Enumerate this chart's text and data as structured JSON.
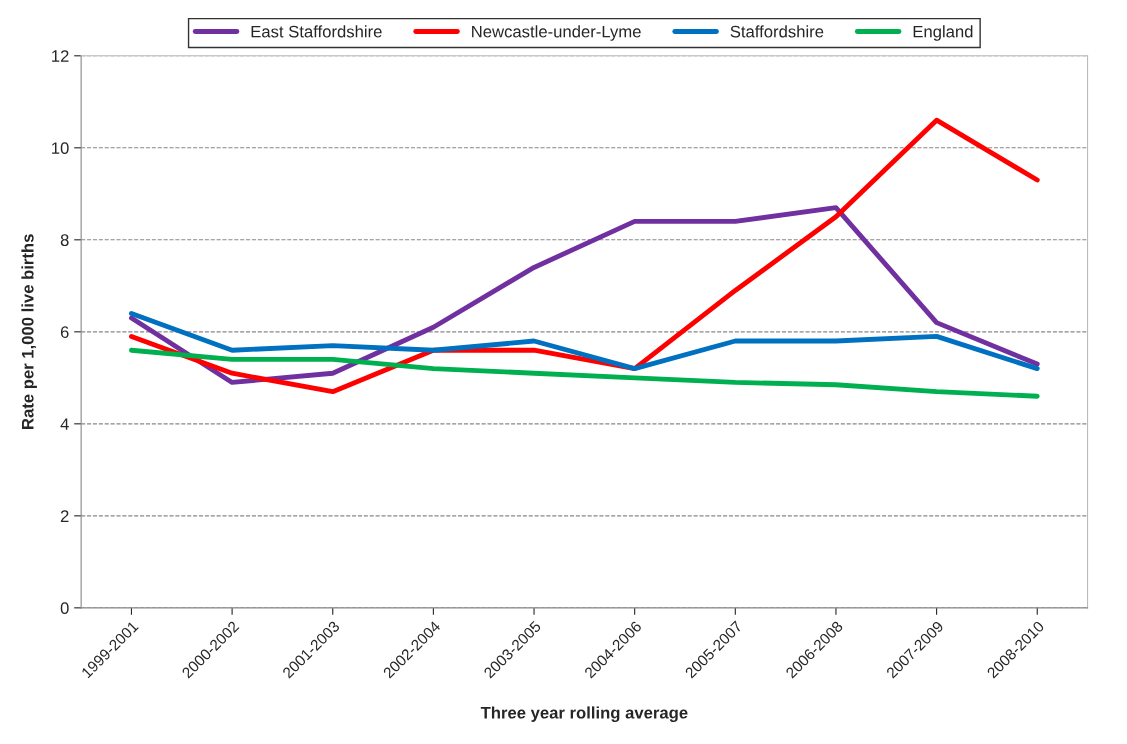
{
  "chart_data": {
    "type": "line",
    "xlabel": "Three year rolling average",
    "ylabel": "Rate per 1,000 live births",
    "categories": [
      "1999-2001",
      "2000-2002",
      "2001-2003",
      "2002-2004",
      "2003-2005",
      "2004-2006",
      "2005-2007",
      "2006-2008",
      "2007-2009",
      "2008-2010"
    ],
    "series": [
      {
        "name": "East Staffordshire",
        "color": "#7030a0",
        "values": [
          6.3,
          4.9,
          5.1,
          6.1,
          7.4,
          8.4,
          8.4,
          8.7,
          6.2,
          5.3
        ]
      },
      {
        "name": "Newcastle-under-Lyme",
        "color": "#ff0000",
        "values": [
          5.9,
          5.1,
          4.7,
          5.6,
          5.6,
          5.2,
          6.9,
          8.5,
          10.6,
          9.3
        ]
      },
      {
        "name": "Staffordshire",
        "color": "#0070c0",
        "values": [
          6.4,
          5.6,
          5.7,
          5.6,
          5.8,
          5.2,
          5.8,
          5.8,
          5.9,
          5.2
        ]
      },
      {
        "name": "England",
        "color": "#00b050",
        "values": [
          5.6,
          5.4,
          5.4,
          5.2,
          5.1,
          5.0,
          4.9,
          4.85,
          4.7,
          4.6
        ]
      }
    ],
    "ylim": [
      0,
      12
    ],
    "yticks": [
      0,
      2,
      4,
      6,
      8,
      10,
      12
    ],
    "grid": "y",
    "legend": "top",
    "marker": "none",
    "line_style": "solid"
  }
}
